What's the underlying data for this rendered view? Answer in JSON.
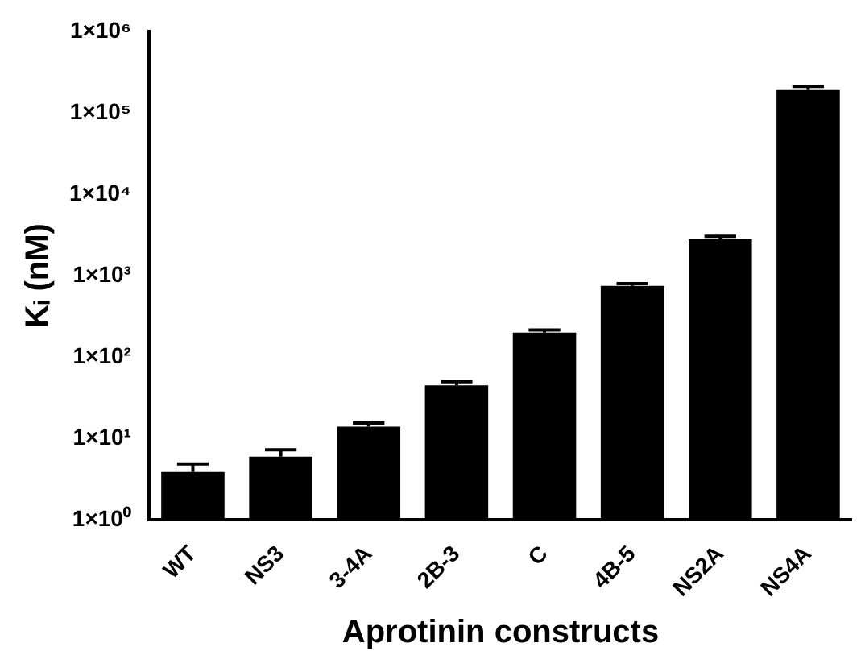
{
  "chart_data": {
    "type": "bar",
    "xlabel": "Aprotinin constructs",
    "ylabel": "Kᵢ (nM)",
    "categories": [
      "WT",
      "NS3",
      "3-4A",
      "2B-3",
      "C",
      "4B-5",
      "NS2A",
      "NS4A"
    ],
    "values": [
      3.9,
      6,
      14,
      45,
      200,
      750,
      2800,
      190000
    ],
    "errors": [
      [
        3.9,
        4.9
      ],
      [
        6,
        7.3
      ],
      [
        14,
        15.5
      ],
      [
        45,
        50
      ],
      [
        200,
        215
      ],
      [
        750,
        800
      ],
      [
        2800,
        3050
      ],
      [
        190000,
        210000
      ]
    ],
    "color": "#000000",
    "log": true,
    "ylim": [
      1,
      1000000
    ],
    "yticks": [
      {
        "value": 1,
        "label": "1×10⁰"
      },
      {
        "value": 10,
        "label": "1×10¹"
      },
      {
        "value": 100,
        "label": "1×10²"
      },
      {
        "value": 1000,
        "label": "1×10³"
      },
      {
        "value": 10000,
        "label": "1×10⁴"
      },
      {
        "value": 100000,
        "label": "1×10⁵"
      },
      {
        "value": 1000000,
        "label": "1×10⁶"
      }
    ],
    "grid": false,
    "legend": false
  }
}
